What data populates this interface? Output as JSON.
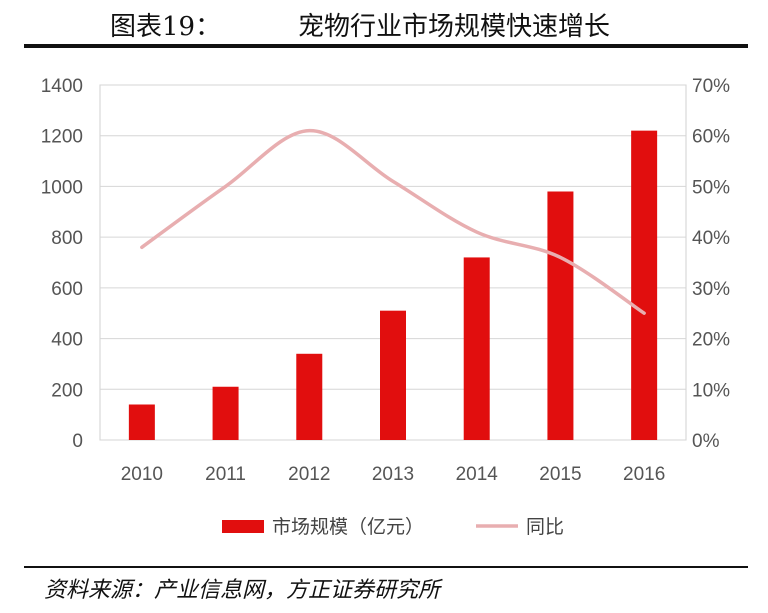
{
  "header": {
    "figure_number": "图表19：",
    "title": "宠物行业市场规模快速增长"
  },
  "footer": {
    "source": "资料来源：产业信息网，方正证券研究所"
  },
  "chart_data": {
    "type": "bar",
    "categories": [
      "2010",
      "2011",
      "2012",
      "2013",
      "2014",
      "2015",
      "2016"
    ],
    "series": [
      {
        "name": "市场规模（亿元）",
        "kind": "bar",
        "axis": "left",
        "color": "#e10e0e",
        "values": [
          140,
          210,
          340,
          510,
          720,
          980,
          1220
        ]
      },
      {
        "name": "同比",
        "kind": "line",
        "axis": "right",
        "color": "#e8aeb0",
        "values": [
          0.38,
          0.5,
          0.61,
          0.51,
          0.41,
          0.36,
          0.25
        ]
      }
    ],
    "y_left": {
      "min": 0,
      "max": 1400,
      "ticks": [
        "0",
        "200",
        "400",
        "600",
        "800",
        "1000",
        "1200",
        "1400"
      ]
    },
    "y_right": {
      "min": 0,
      "max": 0.7,
      "ticks": [
        "0%",
        "10%",
        "20%",
        "30%",
        "40%",
        "50%",
        "60%",
        "70%"
      ]
    },
    "grid": true,
    "legend_position": "bottom"
  }
}
